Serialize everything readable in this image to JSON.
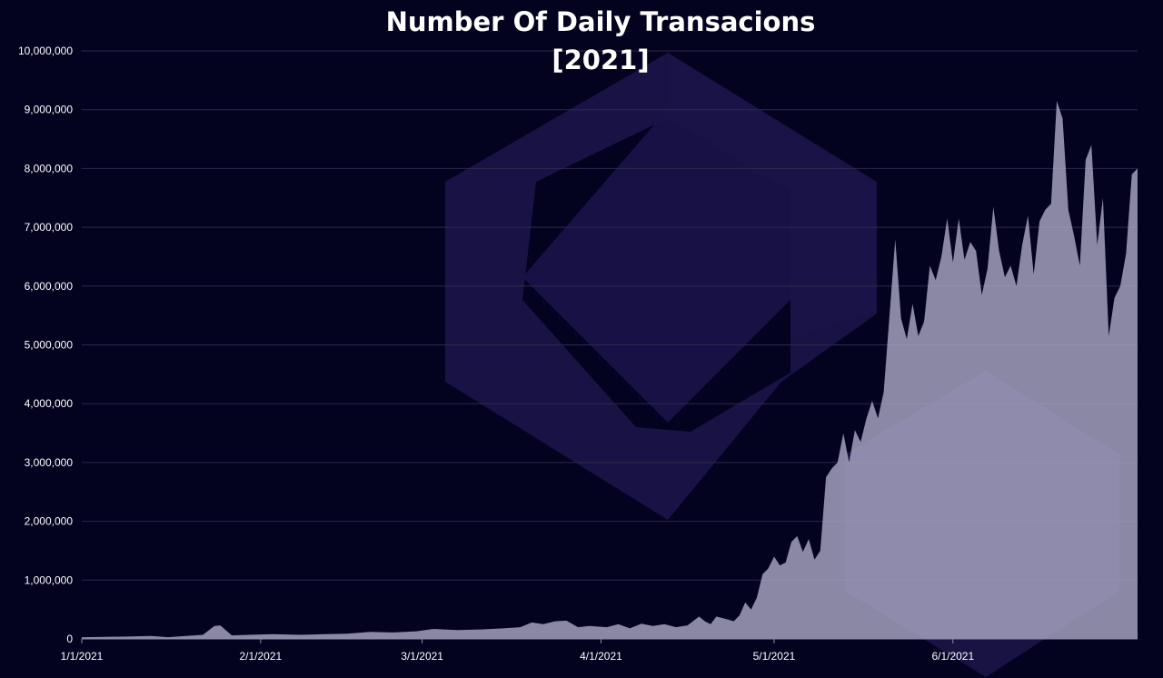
{
  "colors": {
    "background": "#03021f",
    "area_fill": "#a9a6c3",
    "gridline": "#2c2b4a",
    "watermark": "#1a1448",
    "text": "#ffffff"
  },
  "watermark_icon": "hexagon-logo-icon",
  "chart_data": {
    "type": "area",
    "title": "Number Of Daily Transacions",
    "subtitle": "[2021]",
    "xlabel": "",
    "ylabel": "",
    "ylim": [
      0,
      10000000
    ],
    "xlim": [
      "1/1/2021",
      "6/30/2021"
    ],
    "grid": true,
    "legend": "none",
    "y_ticks": [
      0,
      1000000,
      2000000,
      3000000,
      4000000,
      5000000,
      6000000,
      7000000,
      8000000,
      9000000,
      10000000
    ],
    "y_tick_labels": [
      "0",
      "1,000,000",
      "2,000,000",
      "3,000,000",
      "4,000,000",
      "5,000,000",
      "6,000,000",
      "7,000,000",
      "8,000,000",
      "9,000,000",
      "10,000,000"
    ],
    "x_ticks": [
      "2021-01-01",
      "2021-02-01",
      "2021-03-01",
      "2021-04-01",
      "2021-05-01",
      "2021-06-01"
    ],
    "x_tick_labels": [
      "1/1/2021",
      "2/1/2021",
      "3/1/2021",
      "4/1/2021",
      "5/1/2021",
      "6/1/2021"
    ],
    "series": [
      {
        "points": [
          [
            "2021-01-01",
            30000
          ],
          [
            "2021-01-05",
            35000
          ],
          [
            "2021-01-09",
            40000
          ],
          [
            "2021-01-13",
            50000
          ],
          [
            "2021-01-16",
            30000
          ],
          [
            "2021-01-19",
            50000
          ],
          [
            "2021-01-22",
            70000
          ],
          [
            "2021-01-24",
            220000
          ],
          [
            "2021-01-25",
            230000
          ],
          [
            "2021-01-27",
            60000
          ],
          [
            "2021-01-30",
            70000
          ],
          [
            "2021-02-03",
            80000
          ],
          [
            "2021-02-08",
            70000
          ],
          [
            "2021-02-12",
            80000
          ],
          [
            "2021-02-16",
            90000
          ],
          [
            "2021-02-20",
            120000
          ],
          [
            "2021-02-24",
            110000
          ],
          [
            "2021-02-28",
            130000
          ],
          [
            "2021-03-03",
            170000
          ],
          [
            "2021-03-07",
            150000
          ],
          [
            "2021-03-11",
            160000
          ],
          [
            "2021-03-15",
            180000
          ],
          [
            "2021-03-18",
            200000
          ],
          [
            "2021-03-20",
            280000
          ],
          [
            "2021-03-22",
            250000
          ],
          [
            "2021-03-24",
            300000
          ],
          [
            "2021-03-26",
            310000
          ],
          [
            "2021-03-28",
            200000
          ],
          [
            "2021-03-30",
            220000
          ],
          [
            "2021-04-02",
            200000
          ],
          [
            "2021-04-04",
            250000
          ],
          [
            "2021-04-06",
            180000
          ],
          [
            "2021-04-08",
            260000
          ],
          [
            "2021-04-10",
            220000
          ],
          [
            "2021-04-12",
            250000
          ],
          [
            "2021-04-14",
            200000
          ],
          [
            "2021-04-16",
            230000
          ],
          [
            "2021-04-18",
            380000
          ],
          [
            "2021-04-19",
            300000
          ],
          [
            "2021-04-20",
            250000
          ],
          [
            "2021-04-21",
            380000
          ],
          [
            "2021-04-23",
            330000
          ],
          [
            "2021-04-24",
            300000
          ],
          [
            "2021-04-25",
            400000
          ],
          [
            "2021-04-26",
            620000
          ],
          [
            "2021-04-27",
            500000
          ],
          [
            "2021-04-28",
            700000
          ],
          [
            "2021-04-29",
            1100000
          ],
          [
            "2021-04-30",
            1200000
          ],
          [
            "2021-05-01",
            1400000
          ],
          [
            "2021-05-02",
            1250000
          ],
          [
            "2021-05-03",
            1300000
          ],
          [
            "2021-05-04",
            1650000
          ],
          [
            "2021-05-05",
            1750000
          ],
          [
            "2021-05-06",
            1480000
          ],
          [
            "2021-05-07",
            1700000
          ],
          [
            "2021-05-08",
            1350000
          ],
          [
            "2021-05-09",
            1500000
          ],
          [
            "2021-05-10",
            2750000
          ],
          [
            "2021-05-11",
            2900000
          ],
          [
            "2021-05-12",
            3000000
          ],
          [
            "2021-05-13",
            3500000
          ],
          [
            "2021-05-14",
            3000000
          ],
          [
            "2021-05-15",
            3550000
          ],
          [
            "2021-05-16",
            3350000
          ],
          [
            "2021-05-17",
            3750000
          ],
          [
            "2021-05-18",
            4050000
          ],
          [
            "2021-05-19",
            3750000
          ],
          [
            "2021-05-20",
            4200000
          ],
          [
            "2021-05-21",
            5500000
          ],
          [
            "2021-05-22",
            6800000
          ],
          [
            "2021-05-23",
            5450000
          ],
          [
            "2021-05-24",
            5100000
          ],
          [
            "2021-05-25",
            5700000
          ],
          [
            "2021-05-26",
            5150000
          ],
          [
            "2021-05-27",
            5400000
          ],
          [
            "2021-05-28",
            6350000
          ],
          [
            "2021-05-29",
            6100000
          ],
          [
            "2021-05-30",
            6500000
          ],
          [
            "2021-05-31",
            7150000
          ],
          [
            "2021-06-01",
            6400000
          ],
          [
            "2021-06-02",
            7150000
          ],
          [
            "2021-06-03",
            6450000
          ],
          [
            "2021-06-04",
            6750000
          ],
          [
            "2021-06-05",
            6600000
          ],
          [
            "2021-06-06",
            5850000
          ],
          [
            "2021-06-07",
            6300000
          ],
          [
            "2021-06-08",
            7350000
          ],
          [
            "2021-06-09",
            6600000
          ],
          [
            "2021-06-10",
            6150000
          ],
          [
            "2021-06-11",
            6350000
          ],
          [
            "2021-06-12",
            6000000
          ],
          [
            "2021-06-13",
            6700000
          ],
          [
            "2021-06-14",
            7200000
          ],
          [
            "2021-06-15",
            6200000
          ],
          [
            "2021-06-16",
            7100000
          ],
          [
            "2021-06-17",
            7300000
          ],
          [
            "2021-06-18",
            7400000
          ],
          [
            "2021-06-19",
            9150000
          ],
          [
            "2021-06-20",
            8850000
          ],
          [
            "2021-06-21",
            7300000
          ],
          [
            "2021-06-22",
            6850000
          ],
          [
            "2021-06-23",
            6350000
          ],
          [
            "2021-06-24",
            8150000
          ],
          [
            "2021-06-25",
            8400000
          ],
          [
            "2021-06-26",
            6700000
          ],
          [
            "2021-06-27",
            7500000
          ],
          [
            "2021-06-28",
            5150000
          ],
          [
            "2021-06-29",
            5800000
          ],
          [
            "2021-06-30",
            6000000
          ],
          [
            "2021-07-01",
            6550000
          ],
          [
            "2021-07-02",
            7900000
          ],
          [
            "2021-07-03",
            8000000
          ]
        ]
      }
    ]
  }
}
